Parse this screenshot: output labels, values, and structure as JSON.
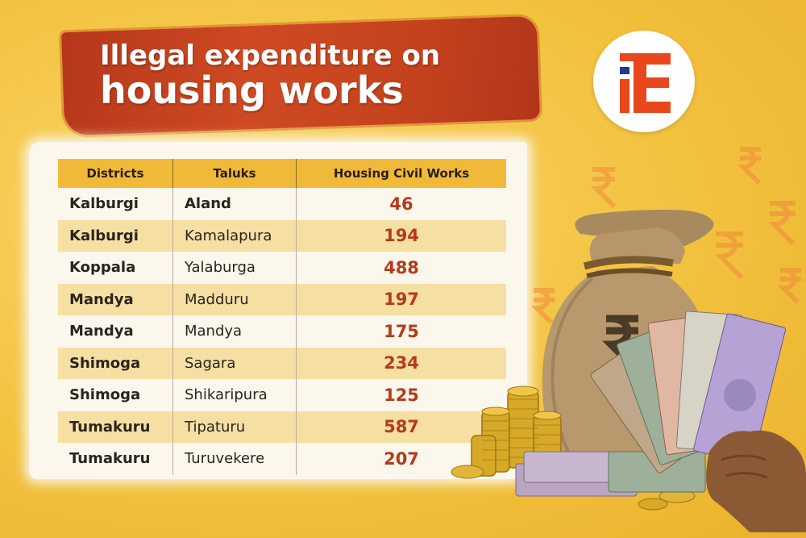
{
  "title": {
    "line1": "Illegal expenditure on",
    "line2": "housing works"
  },
  "logo": {
    "icon": "ie-logo-icon",
    "colors": [
      "#e8481c",
      "#1f3a93"
    ]
  },
  "table": {
    "headers": [
      "Districts",
      "Taluks",
      "Housing Civil Works"
    ],
    "rows": [
      {
        "district": "Kalburgi",
        "taluk": "Aland",
        "works": "46"
      },
      {
        "district": "Kalburgi",
        "taluk": "Kamalapura",
        "works": "194"
      },
      {
        "district": "Koppala",
        "taluk": "Yalaburga",
        "works": "488"
      },
      {
        "district": "Mandya",
        "taluk": "Madduru",
        "works": "197"
      },
      {
        "district": "Mandya",
        "taluk": "Mandya",
        "works": "175"
      },
      {
        "district": "Shimoga",
        "taluk": "Sagara",
        "works": "234"
      },
      {
        "district": "Shimoga",
        "taluk": "Shikaripura",
        "works": "125"
      },
      {
        "district": "Tumakuru",
        "taluk": "Tipaturu",
        "works": "587"
      },
      {
        "district": "Tumakuru",
        "taluk": "Turuvekere",
        "works": "207"
      }
    ]
  },
  "illustration": {
    "icons": [
      "rupee-symbol-icon",
      "money-bag-icon",
      "coin-stack-icon",
      "banknote-fan-icon",
      "hand-icon"
    ],
    "colors": {
      "accent": "#c3421d",
      "header": "#f1b938",
      "background": "#f3c23f"
    }
  }
}
